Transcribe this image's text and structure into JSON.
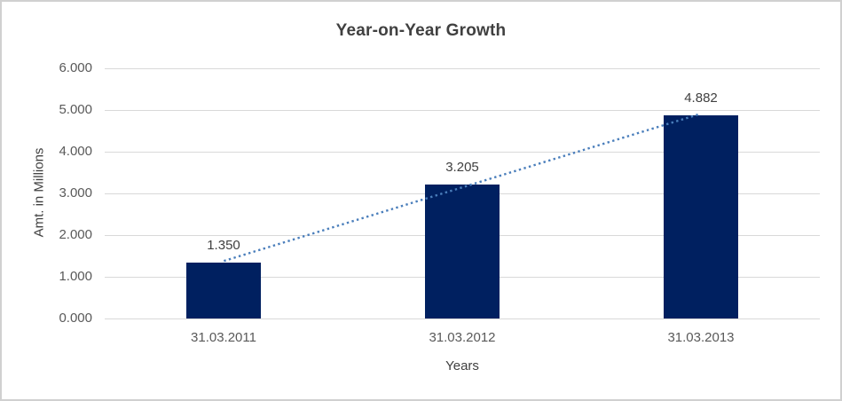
{
  "chart_data": {
    "type": "bar",
    "title": "Year-on-Year Growth",
    "xlabel": "Years",
    "ylabel": "Amt. in Millions",
    "categories": [
      "31.03.2011",
      "31.03.2012",
      "31.03.2013"
    ],
    "values": [
      1.35,
      3.205,
      4.882
    ],
    "value_labels": [
      "1.350",
      "3.205",
      "4.882"
    ],
    "ylim": [
      0,
      6
    ],
    "yticks": [
      0,
      1,
      2,
      3,
      4,
      5,
      6
    ],
    "ytick_labels": [
      "0.000",
      "1.000",
      "2.000",
      "3.000",
      "4.000",
      "5.000",
      "6.000"
    ],
    "grid": true,
    "legend": "none",
    "trendline": {
      "style": "dotted",
      "start_value": 1.38,
      "end_value": 4.91
    },
    "colors": {
      "bar": "#002060",
      "trendline": "#4a7ebb",
      "gridline": "#d9d9d9",
      "axis_line": "#d9d9d9",
      "title_text": "#404040",
      "axis_title_text": "#404040",
      "tick_text": "#595959",
      "data_label_text": "#404040",
      "frame_border": "#d0d0d0",
      "background": "#ffffff"
    }
  }
}
